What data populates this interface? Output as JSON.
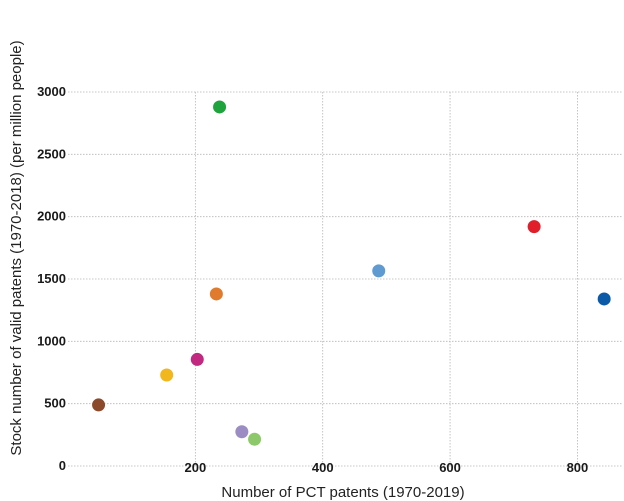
{
  "chart_data": {
    "type": "scatter",
    "title": "",
    "xlabel": "Number of PCT patents (1970-2019)",
    "ylabel": "Stock number of valid patents (1970-2018) (per million people)",
    "xlim": [
      0,
      870
    ],
    "ylim": [
      0,
      3000
    ],
    "x_ticks": [
      200,
      400,
      600,
      800
    ],
    "y_ticks": [
      0,
      500,
      1000,
      1500,
      2000,
      2500,
      3000
    ],
    "grid": true,
    "legend": "none",
    "points": [
      {
        "x": 48,
        "y": 490,
        "color": "#8b4a2b"
      },
      {
        "x": 155,
        "y": 730,
        "color": "#f2b71d"
      },
      {
        "x": 203,
        "y": 855,
        "color": "#c2287f"
      },
      {
        "x": 233,
        "y": 1380,
        "color": "#e07b2e"
      },
      {
        "x": 238,
        "y": 2880,
        "color": "#1fa33d"
      },
      {
        "x": 273,
        "y": 275,
        "color": "#9c8cc4"
      },
      {
        "x": 293,
        "y": 215,
        "color": "#8dc96a"
      },
      {
        "x": 488,
        "y": 1565,
        "color": "#5f9ad0"
      },
      {
        "x": 732,
        "y": 1920,
        "color": "#e01f2a"
      },
      {
        "x": 842,
        "y": 1340,
        "color": "#0b5aa8"
      }
    ]
  }
}
